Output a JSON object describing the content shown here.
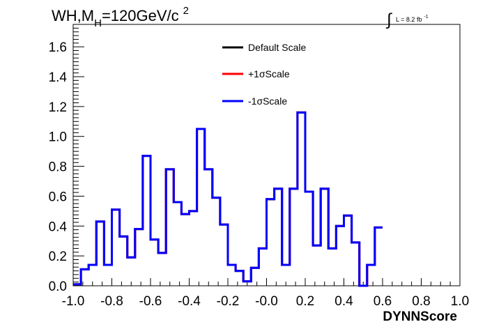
{
  "chart_data": {
    "type": "histogram",
    "title_main": "WH,M",
    "title_sub": "H",
    "title_rest": "=120GeV/c",
    "title_sup": "2",
    "lumi_integral": "∫",
    "lumi_text": "L = 8.2 fb",
    "lumi_sup": "-1",
    "xlabel": "DYNNScore",
    "ylabel": "",
    "xlim": [
      -1.0,
      1.0
    ],
    "ylim": [
      0.0,
      1.75
    ],
    "x_ticks": [
      "-1.0",
      "-0.8",
      "-0.6",
      "-0.4",
      "-0.2",
      "-0.0",
      "0.2",
      "0.4",
      "0.6",
      "0.8",
      "1.0"
    ],
    "y_ticks": [
      "0.0",
      "0.2",
      "0.4",
      "0.6",
      "0.8",
      "1.0",
      "1.2",
      "1.4",
      "1.6"
    ],
    "bin_edges_start": -1.0,
    "bin_width": 0.04,
    "legend_position": "top-center",
    "series": [
      {
        "name": "Default Scale",
        "color": "#000000",
        "values": [
          0.01,
          0.11,
          0.14,
          0.43,
          0.14,
          0.51,
          0.33,
          0.19,
          0.38,
          0.87,
          0.31,
          0.22,
          0.78,
          0.56,
          0.48,
          0.5,
          1.05,
          0.78,
          0.59,
          0.41,
          0.14,
          0.1,
          0.03,
          0.12,
          0.25,
          0.58,
          0.65,
          0.14,
          0.65,
          1.16,
          0.63,
          0.27,
          0.65,
          0.25,
          0.4,
          0.47,
          0.29,
          0.0,
          0.14,
          0.39
        ]
      },
      {
        "name": "+1σScale",
        "color": "#ff0000",
        "values": [
          0.01,
          0.11,
          0.14,
          0.43,
          0.14,
          0.51,
          0.33,
          0.19,
          0.38,
          0.87,
          0.31,
          0.22,
          0.78,
          0.56,
          0.48,
          0.5,
          1.05,
          0.78,
          0.59,
          0.41,
          0.14,
          0.1,
          0.03,
          0.12,
          0.25,
          0.58,
          0.65,
          0.14,
          0.65,
          1.16,
          0.63,
          0.27,
          0.65,
          0.25,
          0.4,
          0.47,
          0.29,
          0.0,
          0.14,
          0.39
        ]
      },
      {
        "name": "-1σScale",
        "color": "#0000ff",
        "values": [
          0.01,
          0.11,
          0.14,
          0.43,
          0.14,
          0.51,
          0.33,
          0.19,
          0.38,
          0.87,
          0.31,
          0.22,
          0.78,
          0.56,
          0.48,
          0.5,
          1.05,
          0.78,
          0.59,
          0.41,
          0.14,
          0.1,
          0.03,
          0.12,
          0.25,
          0.58,
          0.65,
          0.14,
          0.65,
          1.16,
          0.63,
          0.27,
          0.65,
          0.25,
          0.4,
          0.47,
          0.29,
          0.0,
          0.14,
          0.39
        ]
      }
    ]
  }
}
